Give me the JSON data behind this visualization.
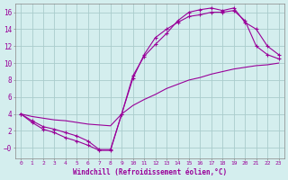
{
  "xlabel": "Windchill (Refroidissement éolien,°C)",
  "bg_color": "#d4eeee",
  "grid_color": "#aacccc",
  "line_color": "#990099",
  "xlim": [
    -0.5,
    23.5
  ],
  "ylim": [
    -1.2,
    17.0
  ],
  "xticks": [
    0,
    1,
    2,
    3,
    4,
    5,
    6,
    7,
    8,
    9,
    10,
    11,
    12,
    13,
    14,
    15,
    16,
    17,
    18,
    19,
    20,
    21,
    22,
    23
  ],
  "yticks": [
    0,
    2,
    4,
    6,
    8,
    10,
    12,
    14,
    16
  ],
  "line1_x": [
    0,
    1,
    2,
    3,
    4,
    5,
    6,
    7,
    8,
    9,
    10,
    11,
    12,
    13,
    14,
    15,
    16,
    17,
    18,
    19,
    20,
    21,
    22,
    23
  ],
  "line1_y": [
    4.0,
    3.0,
    2.2,
    1.8,
    1.2,
    0.8,
    0.3,
    -0.3,
    -0.3,
    4.0,
    8.2,
    11.0,
    13.0,
    14.0,
    14.8,
    15.5,
    15.7,
    16.0,
    16.0,
    16.2,
    15.0,
    12.0,
    11.0,
    10.5
  ],
  "line2_x": [
    0,
    1,
    2,
    3,
    4,
    5,
    6,
    7,
    8,
    9,
    10,
    11,
    12,
    13,
    14,
    15,
    16,
    17,
    18,
    19,
    20,
    21,
    22,
    23
  ],
  "line2_y": [
    4.0,
    3.2,
    2.5,
    2.2,
    1.8,
    1.4,
    0.8,
    -0.2,
    -0.2,
    4.0,
    8.5,
    10.8,
    12.2,
    13.5,
    15.0,
    16.0,
    16.3,
    16.5,
    16.2,
    16.5,
    14.8,
    14.0,
    12.0,
    11.0
  ],
  "line3_x": [
    0,
    1,
    2,
    3,
    4,
    5,
    6,
    7,
    8,
    9,
    10,
    11,
    12,
    13,
    14,
    15,
    16,
    17,
    18,
    19,
    20,
    21,
    22,
    23
  ],
  "line3_y": [
    4.0,
    3.7,
    3.5,
    3.3,
    3.2,
    3.0,
    2.8,
    2.7,
    2.6,
    4.0,
    5.0,
    5.7,
    6.3,
    7.0,
    7.5,
    8.0,
    8.3,
    8.7,
    9.0,
    9.3,
    9.5,
    9.7,
    9.8,
    10.0
  ]
}
